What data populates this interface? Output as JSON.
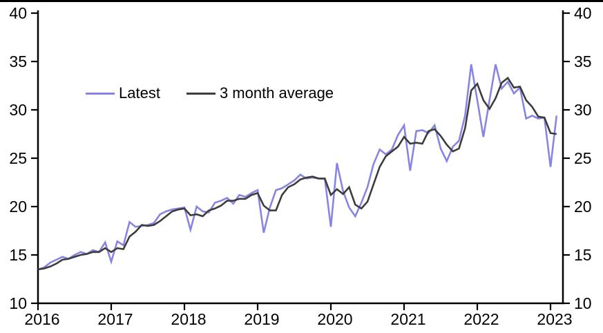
{
  "chart_data": {
    "type": "line",
    "title": "",
    "xlabel": "",
    "ylabel": "",
    "x_unit": "month",
    "x_start": "2016-01",
    "x_end": "2023-02",
    "n_points": 86,
    "x_tick_labels": [
      "2016",
      "2017",
      "2018",
      "2019",
      "2020",
      "2021",
      "2022",
      "2023"
    ],
    "y_ticks": [
      10,
      15,
      20,
      25,
      30,
      35,
      40
    ],
    "ylim": [
      10,
      40
    ],
    "grid": false,
    "dual_y_axis": true,
    "legend_position": "inside-upper-left",
    "series": [
      {
        "name": "Latest",
        "color": "#8784e2",
        "values": [
          13.5,
          13.7,
          14.2,
          14.5,
          14.8,
          14.6,
          15.0,
          15.3,
          15.1,
          15.5,
          15.3,
          16.3,
          14.3,
          16.4,
          16.0,
          18.4,
          17.9,
          18.0,
          18.1,
          18.3,
          19.2,
          19.5,
          19.7,
          19.8,
          19.9,
          17.6,
          20.0,
          19.5,
          19.4,
          20.4,
          20.6,
          20.9,
          20.3,
          21.2,
          21.0,
          21.4,
          21.7,
          17.3,
          19.9,
          21.7,
          21.9,
          22.3,
          22.7,
          23.3,
          22.9,
          23.0,
          22.9,
          22.9,
          17.9,
          24.5,
          21.6,
          19.9,
          19.0,
          20.4,
          22.0,
          24.4,
          25.9,
          25.4,
          25.9,
          27.4,
          28.4,
          23.7,
          27.8,
          27.9,
          27.6,
          28.4,
          26.0,
          24.7,
          26.2,
          26.8,
          29.4,
          34.7,
          31.0,
          27.2,
          31.0,
          34.7,
          32.2,
          32.9,
          31.7,
          32.3,
          29.1,
          29.4,
          29.1,
          29.2,
          24.1,
          29.4
        ]
      },
      {
        "name": "3 month average",
        "color": "#3c3c3c",
        "values": [
          13.5,
          13.6,
          13.8,
          14.1,
          14.5,
          14.6,
          14.8,
          15.0,
          15.1,
          15.3,
          15.3,
          15.7,
          15.3,
          15.7,
          15.6,
          16.9,
          17.4,
          18.1,
          18.0,
          18.1,
          18.5,
          19.0,
          19.5,
          19.7,
          19.8,
          19.1,
          19.2,
          19.0,
          19.6,
          19.8,
          20.1,
          20.6,
          20.6,
          20.8,
          20.8,
          21.2,
          21.4,
          20.1,
          19.6,
          19.6,
          21.2,
          22.0,
          22.3,
          22.8,
          23.0,
          23.1,
          22.9,
          22.9,
          21.2,
          21.8,
          21.3,
          22.0,
          20.2,
          19.8,
          20.5,
          22.3,
          24.1,
          25.2,
          25.7,
          26.2,
          27.2,
          26.5,
          26.6,
          26.5,
          27.8,
          28.0,
          27.3,
          26.4,
          25.7,
          26.0,
          28.1,
          32.0,
          32.7,
          31.0,
          30.1,
          31.2,
          32.8,
          33.3,
          32.3,
          32.4,
          31.0,
          30.3,
          29.3,
          29.2,
          27.6,
          27.5
        ]
      }
    ]
  },
  "colors": {
    "axis": "#000000",
    "background": "#ffffff",
    "latest_line": "#8784e2",
    "average_line": "#3c3c3c"
  }
}
